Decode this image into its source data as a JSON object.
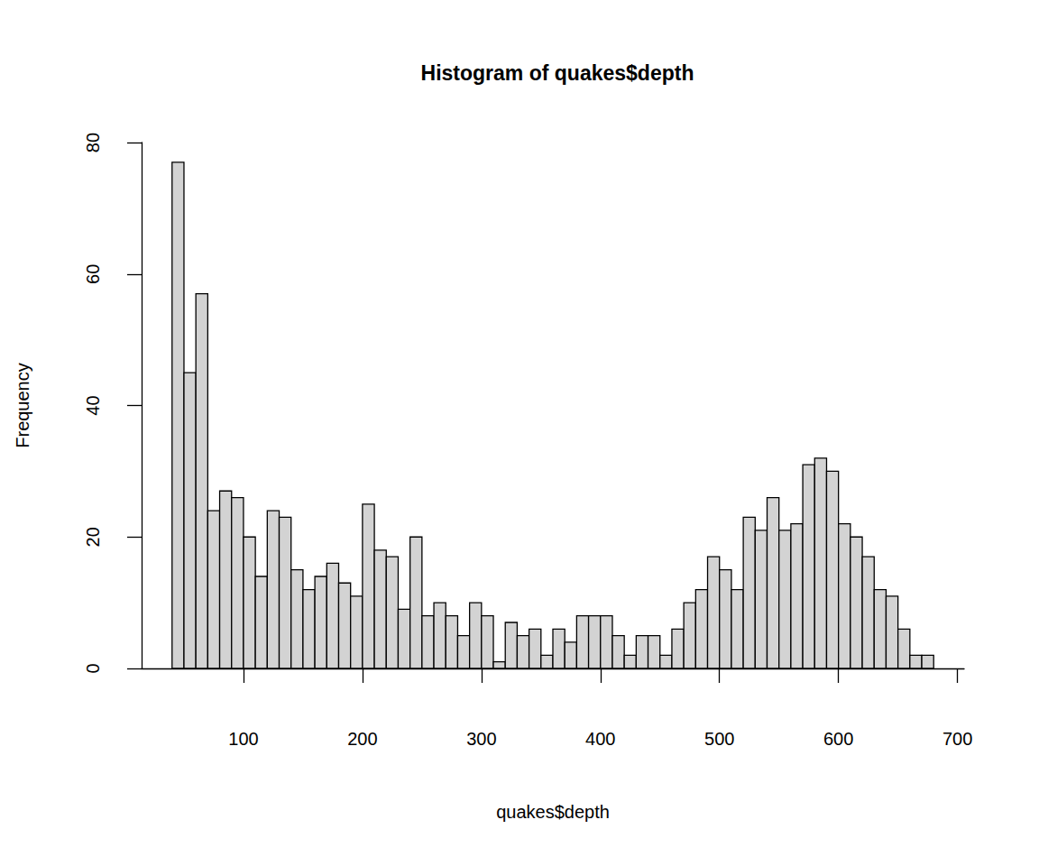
{
  "chart_data": {
    "type": "histogram",
    "title": "Histogram of quakes$depth",
    "x_label": "quakes$depth",
    "y_label": "Frequency",
    "bins": [
      40,
      50,
      60,
      70,
      80,
      90,
      100,
      110,
      120,
      130,
      140,
      150,
      160,
      170,
      180,
      190,
      200,
      210,
      220,
      230,
      240,
      250,
      260,
      270,
      280,
      290,
      300,
      310,
      320,
      330,
      340,
      350,
      360,
      370,
      380,
      390,
      400,
      410,
      420,
      430,
      440,
      450,
      460,
      470,
      480,
      490,
      500,
      510,
      520,
      530,
      540,
      550,
      560,
      570,
      580,
      590,
      600,
      610,
      620,
      630,
      640,
      650,
      660,
      670,
      680
    ],
    "values": [
      77,
      45,
      57,
      24,
      27,
      26,
      20,
      14,
      24,
      23,
      15,
      12,
      14,
      16,
      13,
      11,
      25,
      18,
      17,
      9,
      20,
      8,
      10,
      8,
      5,
      10,
      8,
      1,
      7,
      5,
      6,
      2,
      6,
      4,
      8,
      8,
      8,
      5,
      2,
      5,
      5,
      2,
      6,
      10,
      12,
      17,
      15,
      12,
      23,
      21,
      26,
      21,
      22,
      31,
      32,
      30,
      22,
      20,
      17,
      12,
      11,
      6,
      2,
      2
    ],
    "color": "#d3d3d3",
    "xlim": [
      14.4,
      705.6
    ],
    "xticks": [
      100,
      200,
      300,
      400,
      500,
      600,
      700
    ],
    "ylim": [
      0,
      80
    ],
    "yticks": [
      0,
      20,
      40,
      60,
      80
    ],
    "grid": false
  }
}
